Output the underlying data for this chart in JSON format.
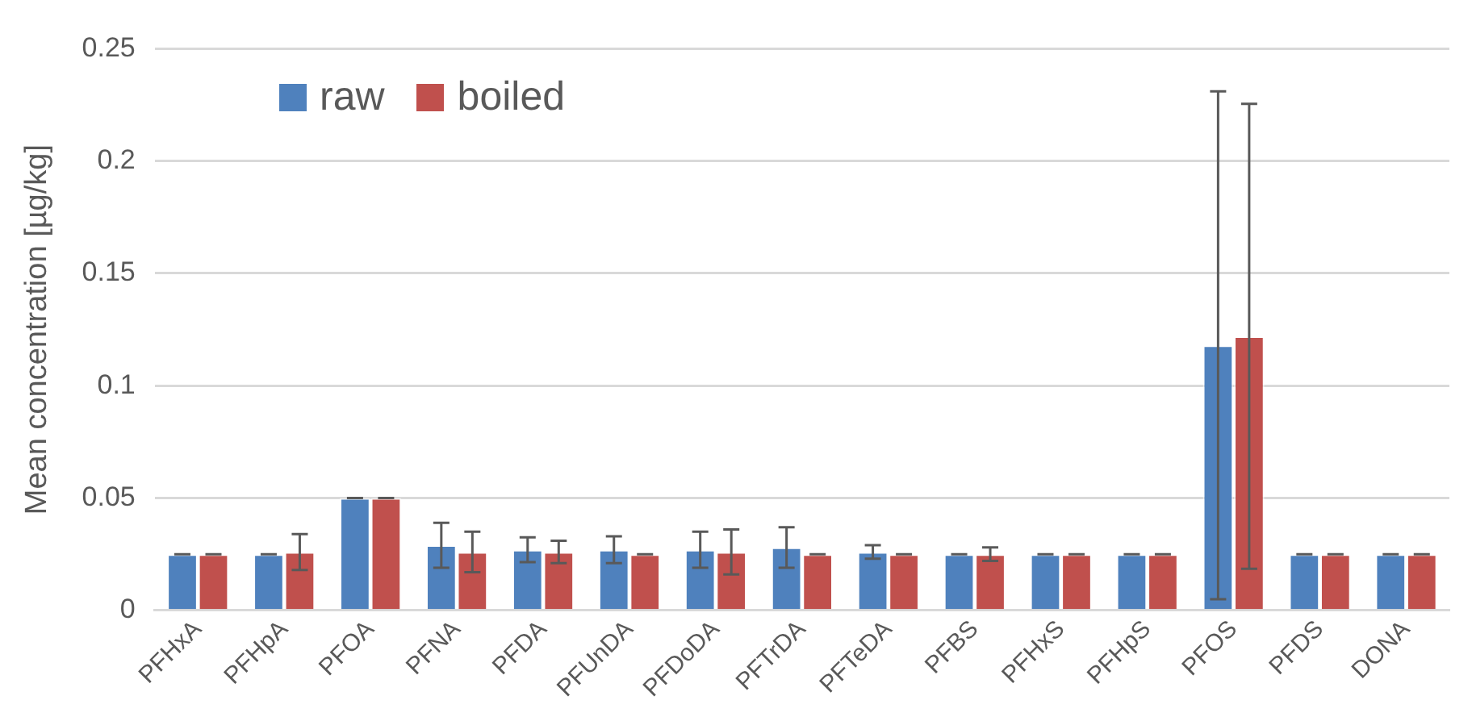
{
  "chart_data": {
    "type": "bar",
    "ylabel": "Mean concentration [µg/kg]",
    "categories": [
      "PFHxA",
      "PFHpA",
      "PFOA",
      "PFNA",
      "PFDA",
      "PFUnDA",
      "PFDoDA",
      "PFTrDA",
      "PFTeDA",
      "PFBS",
      "PFHxS",
      "PFHpS",
      "PFOS",
      "PFDS",
      "DONA"
    ],
    "series": [
      {
        "name": "raw",
        "color": "#4f81bd",
        "values": [
          0.025,
          0.025,
          0.05,
          0.029,
          0.027,
          0.027,
          0.027,
          0.028,
          0.026,
          0.025,
          0.025,
          0.025,
          0.118,
          0.025,
          0.025
        ],
        "errors": [
          0,
          0,
          0,
          0.01,
          0.0055,
          0.006,
          0.008,
          0.009,
          0.003,
          0,
          0,
          0,
          0.113,
          0,
          0
        ]
      },
      {
        "name": "boiled",
        "color": "#c0504d",
        "values": [
          0.025,
          0.026,
          0.05,
          0.026,
          0.026,
          0.025,
          0.026,
          0.025,
          0.025,
          0.025,
          0.025,
          0.025,
          0.122,
          0.025,
          0.025
        ],
        "errors": [
          0,
          0.008,
          0,
          0.009,
          0.005,
          0,
          0.01,
          0,
          0,
          0.003,
          0,
          0,
          0.1035,
          0,
          0
        ]
      }
    ],
    "ylim": [
      0,
      0.25
    ],
    "yticks": [
      0,
      0.05,
      0.1,
      0.15,
      0.2,
      0.25
    ],
    "grid": "y",
    "legend": "top left"
  }
}
